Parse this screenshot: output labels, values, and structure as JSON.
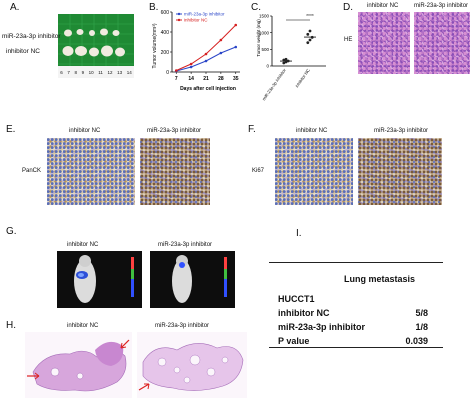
{
  "panels": {
    "A": {
      "letter": "A.",
      "row1": "miR-23a-3p inhibitor",
      "row2": "inhibitor NC",
      "ruler": [
        "6",
        "7",
        "8",
        "9",
        "10",
        "11",
        "12",
        "13",
        "14"
      ]
    },
    "B": {
      "letter": "B.",
      "ylabel": "Tumor volume(mm³)",
      "xlabel": "Days after cell injection"
    },
    "C": {
      "letter": "C.",
      "ylabel": "Tumor weight (mg)",
      "xticks": [
        "miR-23a-3p inhibitor",
        "inhibitor NC"
      ],
      "sig": "****"
    },
    "D": {
      "letter": "D.",
      "col1": "inhibitor NC",
      "col2": "miR-23a-3p inhibitor",
      "row": "HE"
    },
    "E": {
      "letter": "E.",
      "col1": "inhibitor NC",
      "col2": "miR-23a-3p inhibitor",
      "row": "PanCK"
    },
    "F": {
      "letter": "F.",
      "col1": "inhibitor NC",
      "col2": "miR-23a-3p inhibitor",
      "row": "Ki67"
    },
    "G": {
      "letter": "G.",
      "col1": "inhibitor NC",
      "col2": "miR-23a-3p inhibitor"
    },
    "H": {
      "letter": "H.",
      "col1": "inhibitor NC",
      "col2": "miR-23a-3p inhibitor"
    },
    "I": {
      "letter": "I.",
      "header": "Lung metastasis",
      "rows": [
        {
          "label": "HUCCT1",
          "value": ""
        },
        {
          "label": "inhibitor NC",
          "value": "5/8"
        },
        {
          "label": "miR-23a-3p inhibitor",
          "value": "1/8"
        },
        {
          "label": "P value",
          "value": "0.039"
        }
      ]
    }
  },
  "chart_data": [
    {
      "type": "line",
      "title": "",
      "xlabel": "Days after cell injection",
      "ylabel": "Tumor volume(mm³)",
      "x": [
        7,
        14,
        21,
        28,
        35
      ],
      "xlim": [
        5,
        37
      ],
      "ylim": [
        0,
        600
      ],
      "yticks": [
        0,
        200,
        400,
        600
      ],
      "legend": "top-left",
      "series": [
        {
          "name": "miR-23a-3p inhibitor",
          "color": "#2b46c8",
          "values": [
            10,
            50,
            110,
            190,
            250
          ]
        },
        {
          "name": "inhibitor NC",
          "color": "#d62020",
          "values": [
            15,
            80,
            180,
            320,
            470
          ]
        }
      ]
    },
    {
      "type": "scatter",
      "title": "",
      "ylabel": "Tumor weight (mg)",
      "categories": [
        "miR-23a-3p inhibitor",
        "inhibitor NC"
      ],
      "ylim": [
        0,
        1500
      ],
      "yticks": [
        0,
        500,
        1000,
        1500
      ],
      "series": [
        {
          "category": "miR-23a-3p inhibitor",
          "values": [
            90,
            120,
            150,
            180,
            200
          ]
        },
        {
          "category": "inhibitor NC",
          "values": [
            700,
            780,
            860,
            950,
            1050
          ]
        }
      ]
    }
  ]
}
